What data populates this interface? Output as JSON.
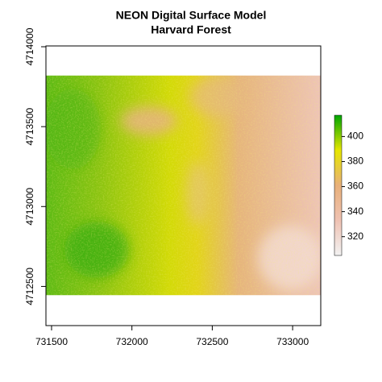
{
  "chart_data": {
    "type": "raster",
    "title": "NEON Digital Surface Model",
    "subtitle": "Harvard Forest",
    "xlim": [
      731465,
      733175
    ],
    "ylim": [
      4712255,
      4714005
    ],
    "xticks": [
      731500,
      732000,
      732500,
      733000
    ],
    "yticks": [
      4712500,
      4713000,
      4713500,
      4714000
    ],
    "extent": {
      "x": [
        731465,
        733175
      ],
      "y": [
        4712445,
        4713820
      ]
    },
    "zlim": [
      305,
      417
    ],
    "zticks": [
      320,
      340,
      360,
      380,
      400
    ],
    "colors": [
      "#F2F2F2",
      "#EFC2B3",
      "#E8B07A",
      "#E6E600",
      "#00A600"
    ]
  }
}
